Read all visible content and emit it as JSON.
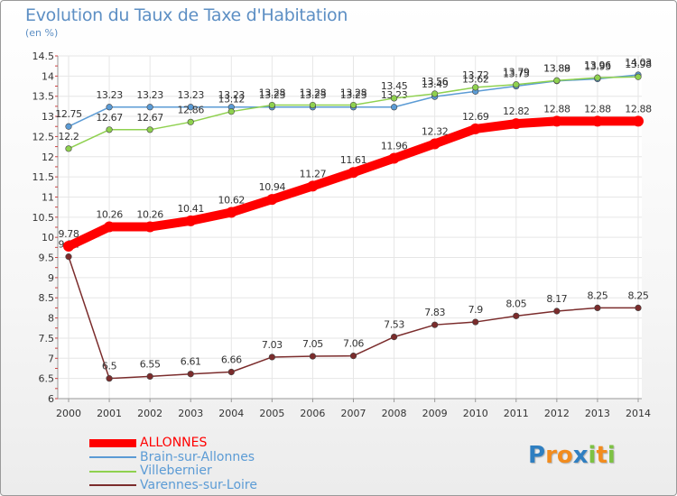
{
  "header": {
    "title": "Evolution du Taux de Taxe d'Habitation",
    "unit": "(en %)"
  },
  "logo": {
    "letters": [
      "P",
      "r",
      "o",
      "x",
      "i",
      "t",
      "i"
    ],
    "colors": [
      "#2f7fc1",
      "#f28c1e",
      "#f28c1e",
      "#2f7fc1",
      "#7dc243",
      "#f28c1e",
      "#7dc243"
    ]
  },
  "chart_data": {
    "type": "line",
    "title": "Evolution du Taux de Taxe d'Habitation",
    "ylabel": "(en %)",
    "xlabel": "",
    "ylim": [
      6,
      14.5
    ],
    "yticks": [
      "6",
      "6.5",
      "7",
      "7.5",
      "8",
      "8.5",
      "9",
      "9.5",
      "10",
      "10.5",
      "11",
      "11.5",
      "12",
      "12.5",
      "13",
      "13.5",
      "14",
      "14.5"
    ],
    "grid": true,
    "legend_position": "bottom-left",
    "x": [
      "2000",
      "2001",
      "2002",
      "2003",
      "2004",
      "2005",
      "2006",
      "2007",
      "2008",
      "2009",
      "2010",
      "2011",
      "2012",
      "2013",
      "2014"
    ],
    "series": [
      {
        "name": "Brain-sur-Allonnes",
        "color": "#5b9bd5",
        "values": [
          12.75,
          13.23,
          13.23,
          13.23,
          13.23,
          13.23,
          13.23,
          13.23,
          13.23,
          13.49,
          13.62,
          13.75,
          13.88,
          13.93,
          14.03
        ],
        "labels": [
          "12.75",
          "13.23",
          "13.23",
          "13.23",
          "13.23",
          "13.23",
          "13.23",
          "13.23",
          "13.23",
          "13.49",
          "13.62",
          "13.75",
          "13.88",
          "13.93",
          "14.03"
        ]
      },
      {
        "name": "Villebernier",
        "color": "#8fd14f",
        "values": [
          12.2,
          12.67,
          12.67,
          12.86,
          13.12,
          13.28,
          13.28,
          13.28,
          13.45,
          13.56,
          13.72,
          13.79,
          13.89,
          13.96,
          13.98
        ],
        "labels": [
          "12.2",
          "12.67",
          "12.67",
          "12.86",
          "13.12",
          "13.28",
          "13.28",
          "13.28",
          "13.45",
          "13.56",
          "13.72",
          "13.79",
          "13.89",
          "13.96",
          "13.98"
        ]
      },
      {
        "name": "Varennes-sur-Loire",
        "color": "#7b2c2c",
        "values": [
          9.52,
          6.5,
          6.55,
          6.61,
          6.66,
          7.03,
          7.05,
          7.06,
          7.53,
          7.83,
          7.9,
          8.05,
          8.17,
          8.25,
          8.25
        ],
        "labels": [
          "9.52",
          "6.5",
          "6.55",
          "6.61",
          "6.66",
          "7.03",
          "7.05",
          "7.06",
          "7.53",
          "7.83",
          "7.9",
          "8.05",
          "8.17",
          "8.25",
          "8.25"
        ]
      },
      {
        "name": "ALLONNES",
        "color": "#ff0000",
        "values": [
          9.78,
          10.26,
          10.26,
          10.41,
          10.62,
          10.94,
          11.27,
          11.61,
          11.96,
          12.32,
          12.69,
          12.82,
          12.88,
          12.88,
          12.88
        ],
        "labels": [
          "9.78",
          "10.26",
          "10.26",
          "10.41",
          "10.62",
          "10.94",
          "11.27",
          "11.61",
          "11.96",
          "12.32",
          "12.69",
          "12.82",
          "12.88",
          "12.88",
          "12.88"
        ]
      }
    ],
    "legend": [
      {
        "name": "ALLONNES",
        "color": "#ff0000",
        "text_color": "#ff0000"
      },
      {
        "name": "Brain-sur-Allonnes",
        "color": "#5b9bd5",
        "text_color": "#5b9bd5"
      },
      {
        "name": "Villebernier",
        "color": "#8fd14f",
        "text_color": "#5b9bd5"
      },
      {
        "name": "Varennes-sur-Loire",
        "color": "#7b2c2c",
        "text_color": "#5b9bd5"
      }
    ]
  }
}
